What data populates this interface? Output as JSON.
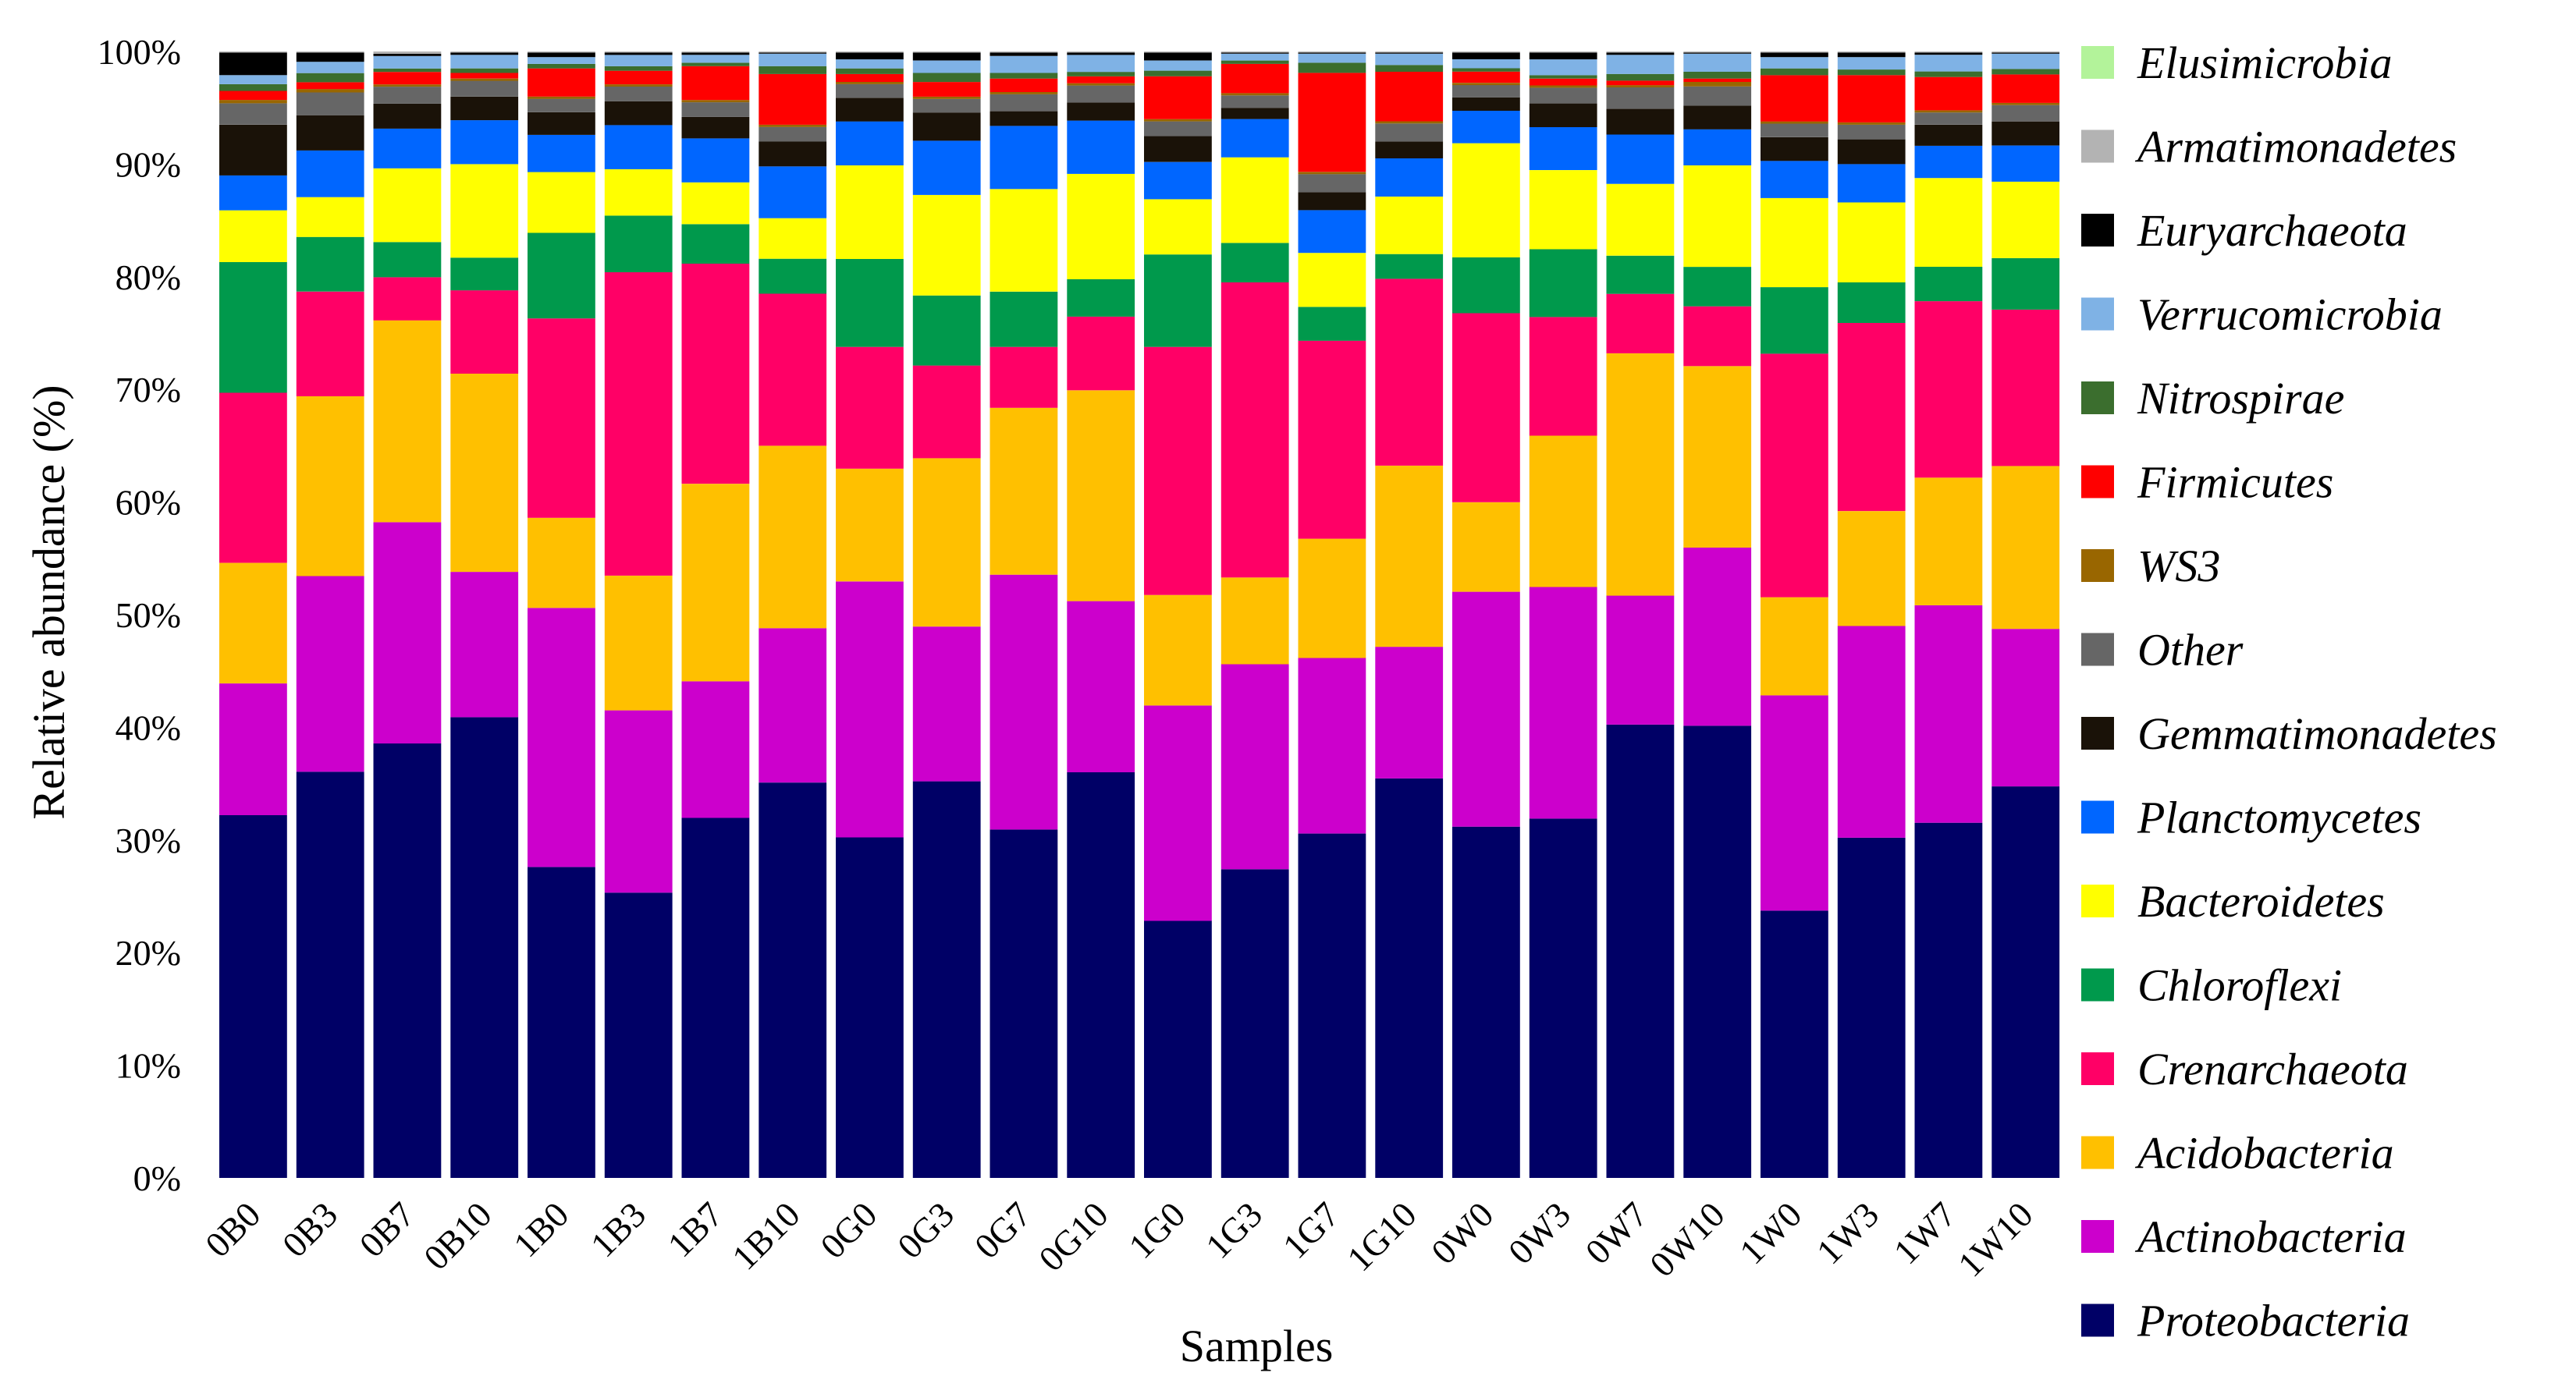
{
  "chart_data": {
    "type": "bar",
    "stacked": true,
    "title": "",
    "xlabel": "Samples",
    "ylabel": "Relative abundance (%)",
    "ylim": [
      0,
      100
    ],
    "yticks": [
      "0%",
      "10%",
      "20%",
      "30%",
      "40%",
      "50%",
      "60%",
      "70%",
      "80%",
      "90%",
      "100%"
    ],
    "categories": [
      "0B0",
      "0B3",
      "0B7",
      "0B10",
      "1B0",
      "1B3",
      "1B7",
      "1B10",
      "0G0",
      "0G3",
      "0G7",
      "0G10",
      "1G0",
      "1G3",
      "1G7",
      "1G10",
      "0W0",
      "0W3",
      "0W7",
      "0W10",
      "1W0",
      "1W3",
      "1W7",
      "1W10"
    ],
    "series": [
      {
        "name": "Proteobacteria",
        "color": "#000066",
        "values": [
          32.2,
          35.7,
          38.3,
          40.9,
          27.6,
          25.2,
          31.9,
          35.1,
          30.2,
          35.1,
          30.9,
          35.8,
          22.8,
          27.4,
          30.6,
          35.5,
          31.4,
          31.8,
          40.4,
          40.1,
          23.7,
          30.2,
          32.0,
          35.8
        ]
      },
      {
        "name": "Actinobacteria",
        "color": "#CC00CC",
        "values": [
          11.7,
          17.2,
          19.5,
          12.9,
          23.0,
          16.1,
          12.1,
          13.7,
          22.7,
          13.7,
          22.6,
          15.1,
          19.1,
          18.2,
          15.6,
          11.7,
          21.0,
          20.5,
          11.5,
          15.8,
          19.1,
          18.8,
          19.6,
          14.4
        ]
      },
      {
        "name": "Acidobacteria",
        "color": "#FFC000",
        "values": [
          10.7,
          15.8,
          17.8,
          17.6,
          8.0,
          11.9,
          17.5,
          16.2,
          10.0,
          14.9,
          14.8,
          18.6,
          9.8,
          7.7,
          10.6,
          16.1,
          8.0,
          13.4,
          21.6,
          16.1,
          8.7,
          10.2,
          11.5,
          14.9
        ]
      },
      {
        "name": "Crenarchaeota",
        "color": "#FF0066",
        "values": [
          15.1,
          9.2,
          3.8,
          7.4,
          17.7,
          26.8,
          19.5,
          13.5,
          10.8,
          8.2,
          5.4,
          6.5,
          22.0,
          26.2,
          17.6,
          16.6,
          16.9,
          10.5,
          5.3,
          5.3,
          21.6,
          16.7,
          15.9,
          14.3
        ]
      },
      {
        "name": "Chloroflexi",
        "color": "#00994C",
        "values": [
          11.6,
          4.8,
          3.1,
          2.9,
          7.6,
          5.0,
          3.5,
          3.1,
          7.8,
          6.2,
          4.9,
          3.3,
          8.2,
          3.5,
          3.0,
          2.2,
          5.0,
          6.0,
          3.4,
          3.5,
          5.9,
          3.6,
          3.1,
          4.7
        ]
      },
      {
        "name": "Bacteroidetes",
        "color": "#FFFF00",
        "values": [
          4.6,
          3.5,
          6.5,
          8.3,
          5.4,
          4.1,
          3.7,
          3.6,
          8.3,
          8.9,
          9.1,
          9.3,
          4.9,
          7.6,
          4.8,
          5.1,
          10.2,
          7.0,
          6.4,
          9.0,
          7.9,
          7.1,
          8.0,
          7.0
        ]
      },
      {
        "name": "Planctomycetes",
        "color": "#0066FF",
        "values": [
          3.1,
          4.1,
          3.5,
          3.9,
          3.3,
          3.9,
          3.9,
          4.6,
          3.9,
          4.8,
          5.6,
          4.7,
          3.3,
          3.4,
          3.8,
          3.4,
          2.9,
          3.8,
          4.4,
          3.2,
          3.3,
          3.4,
          2.9,
          3.3
        ]
      },
      {
        "name": "Gemmatimonadetes",
        "color": "#1A1208",
        "values": [
          4.5,
          3.1,
          2.2,
          2.1,
          2.0,
          2.1,
          1.9,
          2.2,
          2.1,
          2.5,
          1.3,
          1.6,
          2.3,
          1.0,
          1.6,
          1.5,
          1.2,
          2.1,
          2.3,
          2.1,
          2.1,
          2.2,
          1.9,
          2.2
        ]
      },
      {
        "name": "Other",
        "color": "#666666",
        "values": [
          1.9,
          2.0,
          1.5,
          1.4,
          1.2,
          1.3,
          1.3,
          1.3,
          1.2,
          1.2,
          1.5,
          1.5,
          1.3,
          1.1,
          1.6,
          1.6,
          1.1,
          1.4,
          1.9,
          1.7,
          1.2,
          1.3,
          1.1,
          1.5
        ]
      },
      {
        "name": "WS3",
        "color": "#996600",
        "values": [
          0.3,
          0.3,
          0.2,
          0.2,
          0.2,
          0.2,
          0.2,
          0.2,
          0.2,
          0.2,
          0.2,
          0.2,
          0.2,
          0.2,
          0.2,
          0.2,
          0.2,
          0.2,
          0.2,
          0.4,
          0.2,
          0.2,
          0.2,
          0.2
        ]
      },
      {
        "name": "Firmicutes",
        "color": "#FF0000",
        "values": [
          0.8,
          0.6,
          1.1,
          0.5,
          2.5,
          1.2,
          3.0,
          4.5,
          0.7,
          1.3,
          1.2,
          0.6,
          3.8,
          2.6,
          8.8,
          4.4,
          1.0,
          0.6,
          0.4,
          0.3,
          4.1,
          4.2,
          3.0,
          2.6
        ]
      },
      {
        "name": "Nitrospirae",
        "color": "#3B6E2E",
        "values": [
          0.6,
          0.8,
          0.3,
          0.4,
          0.4,
          0.4,
          0.3,
          0.7,
          0.5,
          0.8,
          0.5,
          0.4,
          0.5,
          0.3,
          0.9,
          0.6,
          0.3,
          0.3,
          0.6,
          0.6,
          0.6,
          0.5,
          0.5,
          0.5
        ]
      },
      {
        "name": "Verrucomicrobia",
        "color": "#7FB2E5",
        "values": [
          0.8,
          1.0,
          1.1,
          1.2,
          0.6,
          1.0,
          0.7,
          1.1,
          0.8,
          1.1,
          1.5,
          1.5,
          0.9,
          0.6,
          0.8,
          1.0,
          0.8,
          1.4,
          1.7,
          1.6,
          1.0,
          1.1,
          1.5,
          1.4
        ]
      },
      {
        "name": "Euryarchaeota",
        "color": "#000000",
        "values": [
          2.0,
          0.8,
          0.2,
          0.2,
          0.4,
          0.2,
          0.2,
          0.1,
          0.6,
          0.7,
          0.3,
          0.2,
          0.7,
          0.1,
          0.1,
          0.1,
          0.6,
          0.6,
          0.2,
          0.1,
          0.4,
          0.4,
          0.2,
          0.1
        ]
      },
      {
        "name": "Armatimonadetes",
        "color": "#B3B3B3",
        "values": [
          0.1,
          0.1,
          0.2,
          0.1,
          0.1,
          0.1,
          0.1,
          0.1,
          0.1,
          0.1,
          0.1,
          0.1,
          0.1,
          0.1,
          0.1,
          0.1,
          0.1,
          0.1,
          0.1,
          0.1,
          0.1,
          0.1,
          0.1,
          0.1
        ]
      },
      {
        "name": "Elusimicrobia",
        "color": "#B3F39A",
        "values": [
          0.0,
          0.0,
          0.0,
          0.0,
          0.0,
          0.0,
          0.0,
          0.0,
          0.0,
          0.0,
          0.0,
          0.0,
          0.0,
          0.0,
          0.0,
          0.0,
          0.0,
          0.0,
          0.0,
          0.0,
          0.0,
          0.0,
          0.0,
          0.0
        ]
      }
    ],
    "legend": {
      "placement": "right",
      "order": [
        "Elusimicrobia",
        "Armatimonadetes",
        "Euryarchaeota",
        "Verrucomicrobia",
        "Nitrospirae",
        "Firmicutes",
        "WS3",
        "Other",
        "Gemmatimonadetes",
        "Planctomycetes",
        "Bacteroidetes",
        "Chloroflexi",
        "Crenarchaeota",
        "Acidobacteria",
        "Actinobacteria",
        "Proteobacteria"
      ]
    }
  }
}
